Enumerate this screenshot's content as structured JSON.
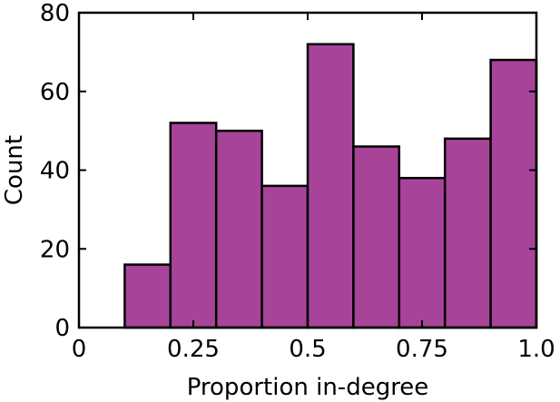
{
  "chart_data": {
    "type": "bar",
    "subtype": "histogram",
    "title": "",
    "xlabel": "Proportion in-degree",
    "ylabel": "Count",
    "xlim": [
      0,
      1
    ],
    "ylim": [
      0,
      80
    ],
    "bar_color": "#a8439a",
    "edge_color": "#000000",
    "grid": false,
    "bins": [
      {
        "x0": 0.0,
        "x1": 0.1,
        "value": 0
      },
      {
        "x0": 0.1,
        "x1": 0.2,
        "value": 16
      },
      {
        "x0": 0.2,
        "x1": 0.3,
        "value": 52
      },
      {
        "x0": 0.3,
        "x1": 0.4,
        "value": 50
      },
      {
        "x0": 0.4,
        "x1": 0.5,
        "value": 36
      },
      {
        "x0": 0.5,
        "x1": 0.6,
        "value": 72
      },
      {
        "x0": 0.6,
        "x1": 0.7,
        "value": 46
      },
      {
        "x0": 0.7,
        "x1": 0.8,
        "value": 38
      },
      {
        "x0": 0.8,
        "x1": 0.9,
        "value": 48
      },
      {
        "x0": 0.9,
        "x1": 1.0,
        "value": 68
      }
    ],
    "x_ticks": [
      {
        "value": 0,
        "label": "0"
      },
      {
        "value": 0.25,
        "label": "0.25"
      },
      {
        "value": 0.5,
        "label": "0.5"
      },
      {
        "value": 0.75,
        "label": "0.75"
      },
      {
        "value": 1.0,
        "label": "1.0"
      }
    ],
    "y_ticks": [
      {
        "value": 0,
        "label": "0"
      },
      {
        "value": 20,
        "label": "20"
      },
      {
        "value": 40,
        "label": "40"
      },
      {
        "value": 60,
        "label": "60"
      },
      {
        "value": 80,
        "label": "80"
      }
    ]
  }
}
